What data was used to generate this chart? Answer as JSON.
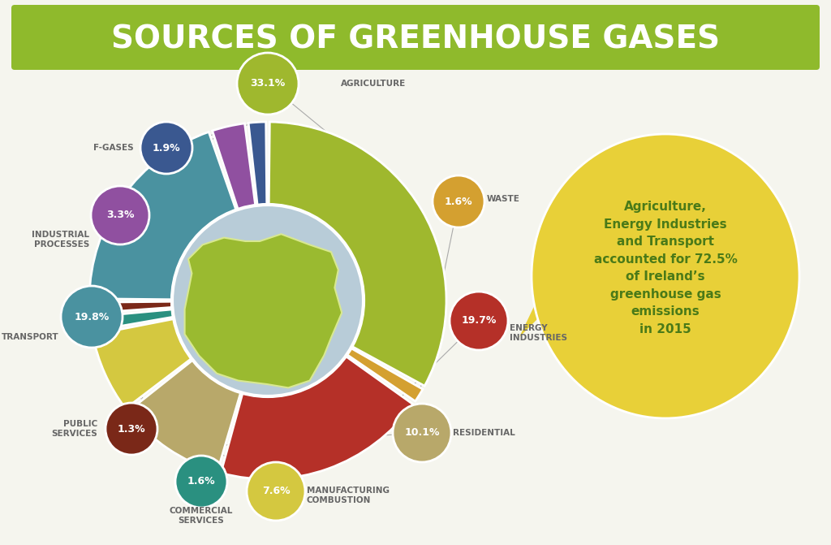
{
  "title": "SOURCES OF GREENHOUSE GASES",
  "title_bg_color": "#8fba2c",
  "title_text_color": "#ffffff",
  "bg_color": "#f5f5ee",
  "segments": [
    {
      "label": "AGRICULTURE",
      "pct": 33.1,
      "color": "#9fb82e",
      "label_side": "top"
    },
    {
      "label": "WASTE",
      "pct": 1.6,
      "color": "#d4a030",
      "label_side": "right"
    },
    {
      "label": "ENERGY\nINDUSTRIES",
      "pct": 19.7,
      "color": "#b53028",
      "label_side": "right"
    },
    {
      "label": "RESIDENTIAL",
      "pct": 10.1,
      "color": "#b8a86a",
      "label_side": "right"
    },
    {
      "label": "MANUFACTURING\nCOMBUSTION",
      "pct": 7.6,
      "color": "#d4c840",
      "label_side": "bottom"
    },
    {
      "label": "COMMERCIAL\nSERVICES",
      "pct": 1.6,
      "color": "#2a9080",
      "label_side": "bottom"
    },
    {
      "label": "PUBLIC\nSERVICES",
      "pct": 1.3,
      "color": "#7a2818",
      "label_side": "left"
    },
    {
      "label": "TRANSPORT",
      "pct": 19.8,
      "color": "#4a92a0",
      "label_side": "left"
    },
    {
      "label": "INDUSTRIAL\nPROCESSES",
      "pct": 3.3,
      "color": "#9050a0",
      "label_side": "left"
    },
    {
      "label": "F-GASES",
      "pct": 1.9,
      "color": "#3a5890",
      "label_side": "left"
    }
  ],
  "bubble_text_bold": "Agriculture,\nEnergy Industries\nand Transport",
  "bubble_text_normal": "accounted for 72.5%\nof Ireland’s\ngreenhouse gas\nemissions\nin 2015",
  "bubble_color": "#e8d038",
  "bubble_text_color": "#4a7a18",
  "inner_circle_color": "#b8ccd8",
  "ireland_color": "#9aba30",
  "ireland_border_color": "#d8e890"
}
